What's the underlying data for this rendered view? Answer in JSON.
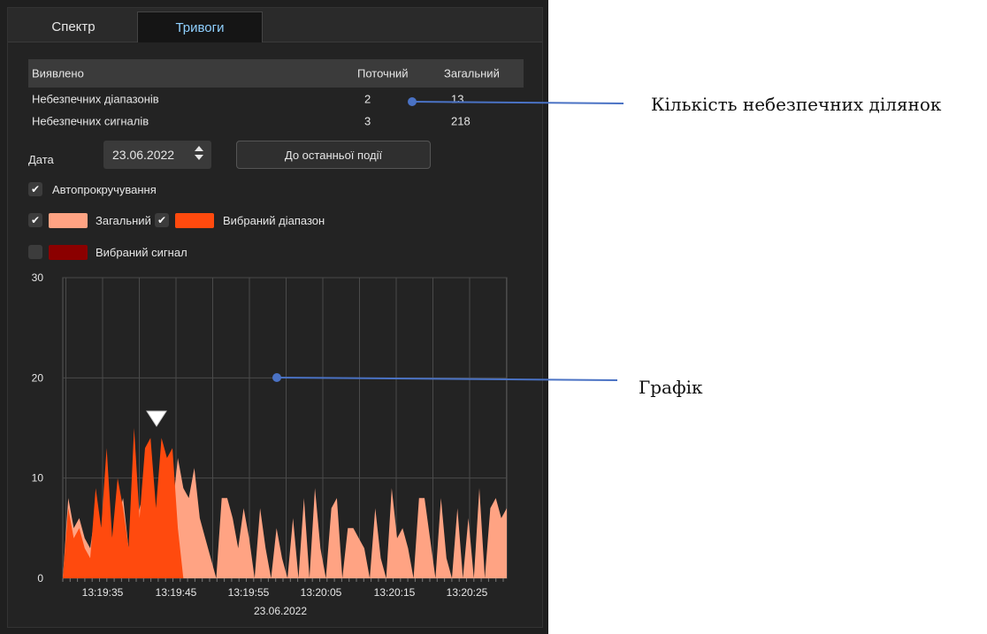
{
  "tabs": [
    {
      "label": "Спектр",
      "active": false
    },
    {
      "label": "Тривоги",
      "active": true
    }
  ],
  "table": {
    "headers": [
      "Виявлено",
      "Поточний",
      "Загальний"
    ],
    "rows": [
      {
        "label": "Небезпечних діапазонів",
        "current": "2",
        "total": "13"
      },
      {
        "label": "Небезпечних сигналів",
        "current": "3",
        "total": "218"
      }
    ]
  },
  "date": {
    "label": "Дата",
    "value": "23.06.2022"
  },
  "button_last_event": "До останньої події",
  "autoscroll": {
    "label": "Автопрокручування",
    "checked": true
  },
  "legend": [
    {
      "label": "Загальний",
      "checked": true,
      "color": "#ffa383"
    },
    {
      "label": "Вибраний діапазон",
      "checked": true,
      "color": "#ff4a0e"
    },
    {
      "label": "Вибраний сигнал",
      "checked": false,
      "color": "#8b0000"
    }
  ],
  "chart_data": {
    "type": "area",
    "ylim": [
      0,
      30
    ],
    "yticks": [
      0,
      10,
      20,
      30
    ],
    "xticks": [
      "13:19:35",
      "13:19:45",
      "13:19:55",
      "13:20:05",
      "13:20:15",
      "13:20:25"
    ],
    "xlabel": "23.06.2022",
    "marker": {
      "label": "selected",
      "x_time": "13:19:43",
      "y": 15
    },
    "series": [
      {
        "name": "Загальний",
        "color": "#ffa383",
        "values": [
          0,
          8,
          5,
          6,
          4,
          3,
          7,
          5,
          9,
          4,
          6,
          8,
          3,
          5,
          7,
          9,
          6,
          4,
          8,
          10,
          7,
          12,
          9,
          8,
          11,
          6,
          4,
          2,
          0,
          8,
          8,
          6,
          3,
          7,
          4,
          0,
          7,
          3,
          0,
          5,
          2,
          0,
          6,
          0,
          8,
          0,
          9,
          3,
          0,
          7,
          8,
          0,
          5,
          5,
          4,
          3,
          0,
          7,
          2,
          0,
          9,
          4,
          5,
          3,
          0,
          8,
          8,
          4,
          0,
          8,
          2,
          0,
          7,
          0,
          6,
          0,
          9,
          0,
          7,
          8,
          6,
          7
        ]
      },
      {
        "name": "Вибраний діапазон",
        "color": "#ff4a0e",
        "values": [
          0,
          7,
          4,
          5,
          3,
          2,
          9,
          5,
          13,
          4,
          10,
          7,
          3,
          15,
          6,
          13,
          14,
          7,
          14,
          12,
          13,
          5,
          0
        ]
      }
    ]
  },
  "annotations": [
    {
      "label": "Кількість небезпечних ділянок"
    },
    {
      "label": "Графік"
    }
  ]
}
